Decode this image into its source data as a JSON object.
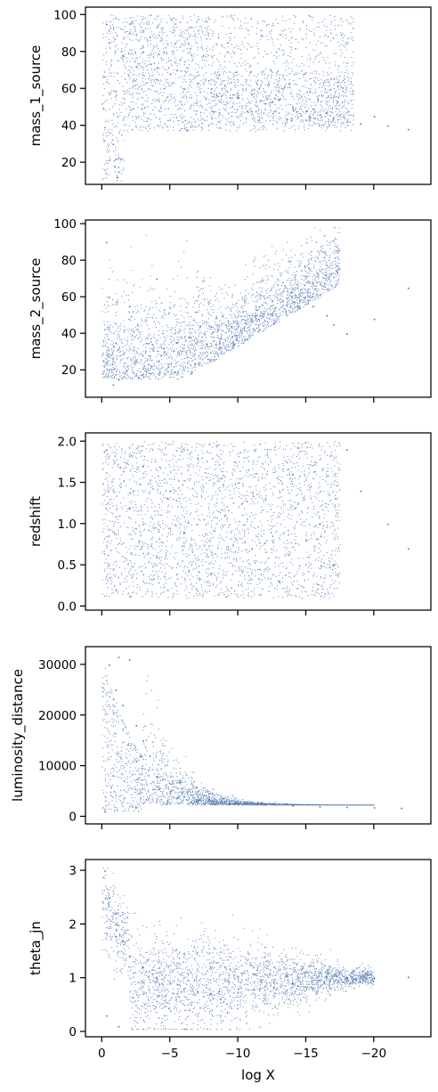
{
  "chart_data": [
    {
      "type": "scatter",
      "ylabel": "mass_1_source",
      "ylim": [
        8,
        104
      ],
      "yticks": [
        20,
        40,
        60,
        80,
        100
      ],
      "ytick_labels": [
        "20",
        "40",
        "60",
        "80",
        "100"
      ],
      "series": [
        {
          "color": "#4c72b0",
          "x": [
            -0.5,
            -1.0,
            -1.2,
            -0.8,
            -0.3,
            -1.5,
            -2.0,
            -2.5,
            -3.0,
            -4.0,
            -5.0,
            -6.0,
            -7.0,
            -8.0,
            -9.0,
            -10.0,
            -11.0,
            -12.0,
            -13.0,
            -14.0,
            -15.0,
            -16.0,
            -17.0,
            -18.0,
            -19.0,
            -20.0,
            -21.0,
            -22.5,
            -0.9,
            -1.1,
            -3.5,
            -5.5,
            -8.5,
            -12.5,
            -15.5,
            -16.5
          ],
          "y": [
            85,
            22,
            15,
            30,
            95,
            78,
            90,
            72,
            80,
            65,
            68,
            60,
            63,
            58,
            62,
            55,
            57,
            52,
            54,
            50,
            48,
            46,
            44,
            42,
            41,
            45,
            40,
            38,
            18,
            12,
            88,
            70,
            66,
            53,
            49,
            47
          ]
        }
      ]
    },
    {
      "type": "scatter",
      "ylabel": "mass_2_source",
      "ylim": [
        5,
        102
      ],
      "yticks": [
        20,
        40,
        60,
        80,
        100
      ],
      "ytick_labels": [
        "20",
        "40",
        "60",
        "80",
        "100"
      ],
      "series": [
        {
          "color": "#4c72b0",
          "x": [
            -0.3,
            -0.8,
            -1.2,
            -1.8,
            -2.5,
            -3.5,
            -4.5,
            -5.5,
            -6.5,
            -7.5,
            -8.5,
            -9.5,
            -10.5,
            -11.5,
            -12.5,
            -13.5,
            -14.5,
            -15.5,
            -16.5,
            -17.0,
            -18.0,
            -20.0,
            -22.5,
            -0.5,
            -1.0,
            -2.0,
            -4.0
          ],
          "y": [
            90,
            12,
            15,
            20,
            25,
            28,
            32,
            35,
            38,
            40,
            42,
            44,
            46,
            48,
            50,
            52,
            54,
            55,
            50,
            45,
            40,
            48,
            65,
            60,
            35,
            55,
            70
          ]
        }
      ]
    },
    {
      "type": "scatter",
      "ylabel": "redshift",
      "ylim": [
        -0.05,
        2.1
      ],
      "yticks": [
        0.0,
        0.5,
        1.0,
        1.5,
        2.0
      ],
      "ytick_labels": [
        "0.0",
        "0.5",
        "1.0",
        "1.5",
        "2.0"
      ],
      "series": [
        {
          "color": "#4c72b0",
          "x": [
            -0.3,
            -1.0,
            -2.0,
            -3.0,
            -4.0,
            -5.0,
            -6.0,
            -7.0,
            -8.0,
            -9.0,
            -10.0,
            -11.0,
            -12.0,
            -13.0,
            -14.0,
            -15.0,
            -16.0,
            -17.0,
            -18.0,
            -19.0,
            -21.0,
            -22.5
          ],
          "y": [
            1.9,
            0.2,
            1.2,
            1.7,
            0.6,
            1.4,
            0.9,
            1.8,
            0.4,
            1.1,
            1.5,
            0.7,
            1.3,
            0.3,
            1.6,
            0.8,
            1.0,
            0.5,
            1.9,
            1.4,
            1.0,
            0.7
          ]
        }
      ]
    },
    {
      "type": "scatter",
      "ylabel": "luminosity_distance",
      "ylim": [
        -1500,
        33500
      ],
      "yticks": [
        0,
        10000,
        20000,
        30000
      ],
      "ytick_labels": [
        "0",
        "10000",
        "20000",
        "30000"
      ],
      "series": [
        {
          "color": "#4c72b0",
          "x": [
            -0.5,
            -1.0,
            -1.5,
            -2.0,
            -2.5,
            -3.0,
            -3.5,
            -4.0,
            -5.0,
            -6.0,
            -7.0,
            -8.0,
            -10.0,
            -12.0,
            -14.0,
            -16.0,
            -18.0,
            -20.0,
            -22.0,
            -0.2,
            -1.2
          ],
          "y": [
            30000,
            25000,
            22000,
            31000,
            18000,
            15000,
            12000,
            8000,
            5000,
            4000,
            3000,
            2800,
            2600,
            2400,
            2200,
            2000,
            1900,
            1800,
            1700,
            1000,
            31500
          ]
        }
      ]
    },
    {
      "type": "scatter",
      "xlabel": "log X",
      "ylabel": "theta_jn",
      "ylim": [
        -0.1,
        3.2
      ],
      "xlim": [
        1.2,
        -24.2
      ],
      "xticks": [
        0,
        -5,
        -10,
        -15,
        -20
      ],
      "xtick_labels": [
        "0",
        "−5",
        "−10",
        "−15",
        "−20"
      ],
      "yticks": [
        0,
        1,
        2,
        3
      ],
      "ytick_labels": [
        "0",
        "1",
        "2",
        "3"
      ],
      "series": [
        {
          "color": "#4c72b0",
          "x": [
            -0.2,
            -0.5,
            -1.0,
            -1.5,
            -2.0,
            -3.0,
            -4.0,
            -5.0,
            -6.0,
            -7.0,
            -8.0,
            -10.0,
            -12.0,
            -14.0,
            -16.0,
            -18.0,
            -20.0,
            -22.5,
            -0.3,
            -1.2
          ],
          "y": [
            3.0,
            2.5,
            2.0,
            1.7,
            1.4,
            1.2,
            1.0,
            0.9,
            0.8,
            0.75,
            0.7,
            0.8,
            0.85,
            0.9,
            0.95,
            1.0,
            1.0,
            1.02,
            0.3,
            0.1
          ]
        }
      ]
    }
  ]
}
